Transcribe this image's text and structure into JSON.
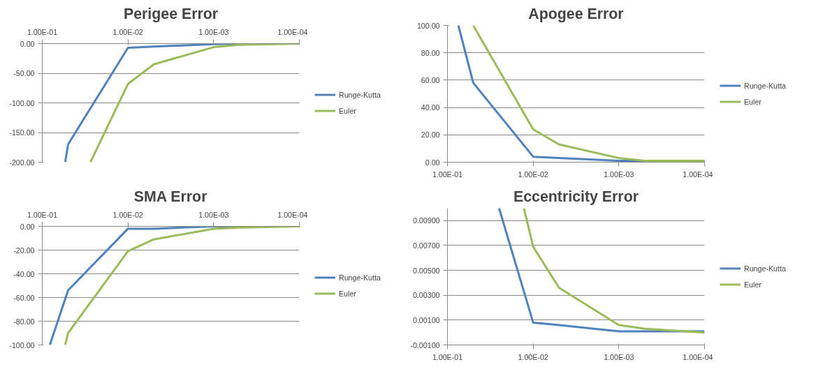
{
  "chart_data": [
    {
      "type": "line",
      "title": "Perigee Error",
      "log": "x",
      "grid": "y",
      "legend": "right",
      "xlim": [
        0.1,
        0.0001
      ],
      "ylim": [
        -200,
        0
      ],
      "xticks": [
        {
          "value": 0.1,
          "label": "1.00E-01"
        },
        {
          "value": 0.01,
          "label": "1.00E-02"
        },
        {
          "value": 0.001,
          "label": "1.00E-03"
        },
        {
          "value": 0.0001,
          "label": "1.00E-04"
        }
      ],
      "yticks": [
        {
          "value": -200,
          "label": "-200.00"
        },
        {
          "value": -150,
          "label": "-150.00"
        },
        {
          "value": -100,
          "label": "-100.00"
        },
        {
          "value": -50,
          "label": "-50.00"
        },
        {
          "value": 0,
          "label": "0.00"
        }
      ],
      "series": [
        {
          "name": "Runge-Kutta",
          "color": "#4f81bd",
          "x": [
            0.054,
            0.05,
            0.01,
            0.005,
            0.001,
            0.0005,
            0.0001
          ],
          "values": [
            -200,
            -170,
            -7,
            -5,
            -1,
            0,
            0
          ]
        },
        {
          "name": "Euler",
          "color": "#9bbb59",
          "x": [
            0.0274,
            0.01,
            0.005,
            0.001,
            0.0005,
            0.0001
          ],
          "values": [
            -200,
            -68,
            -35,
            -6,
            -2,
            0
          ]
        }
      ]
    },
    {
      "type": "line",
      "title": "Apogee Error",
      "log": "x",
      "grid": "y",
      "legend": "right",
      "xlim": [
        0.1,
        0.0001
      ],
      "ylim": [
        0,
        100
      ],
      "xticks": [
        {
          "value": 0.1,
          "label": "1.00E-01"
        },
        {
          "value": 0.01,
          "label": "1.00E-02"
        },
        {
          "value": 0.001,
          "label": "1.00E-03"
        },
        {
          "value": 0.0001,
          "label": "1.00E-04"
        }
      ],
      "yticks": [
        {
          "value": 0,
          "label": "0.00"
        },
        {
          "value": 20,
          "label": "20.00"
        },
        {
          "value": 40,
          "label": "40.00"
        },
        {
          "value": 60,
          "label": "60.00"
        },
        {
          "value": 80,
          "label": "80.00"
        },
        {
          "value": 100,
          "label": "100.00"
        }
      ],
      "series": [
        {
          "name": "Runge-Kutta",
          "color": "#4f81bd",
          "x": [
            0.0746,
            0.05,
            0.01,
            0.005,
            0.001,
            0.0005,
            0.0001
          ],
          "values": [
            100,
            58,
            4,
            3,
            1,
            1,
            1
          ]
        },
        {
          "name": "Euler",
          "color": "#9bbb59",
          "x": [
            0.05,
            0.01,
            0.005,
            0.001,
            0.0005,
            0.0001
          ],
          "values": [
            100,
            24,
            13,
            3,
            1,
            1
          ]
        }
      ]
    },
    {
      "type": "line",
      "title": "SMA Error",
      "log": "x",
      "grid": "y",
      "legend": "right",
      "xlim": [
        0.1,
        0.0001
      ],
      "ylim": [
        -100,
        0
      ],
      "xticks": [
        {
          "value": 0.1,
          "label": "1.00E-01"
        },
        {
          "value": 0.01,
          "label": "1.00E-02"
        },
        {
          "value": 0.001,
          "label": "1.00E-03"
        },
        {
          "value": 0.0001,
          "label": "1.00E-04"
        }
      ],
      "yticks": [
        {
          "value": -100,
          "label": "-100.00"
        },
        {
          "value": -80,
          "label": "-80.00"
        },
        {
          "value": -60,
          "label": "-60.00"
        },
        {
          "value": -40,
          "label": "-40.00"
        },
        {
          "value": -20,
          "label": "-20.00"
        },
        {
          "value": 0,
          "label": "0.00"
        }
      ],
      "series": [
        {
          "name": "Runge-Kutta",
          "color": "#4f81bd",
          "x": [
            0.0816,
            0.05,
            0.01,
            0.005,
            0.001,
            0.0005,
            0.0001
          ],
          "values": [
            -100,
            -54,
            -2,
            -2,
            0,
            0,
            0
          ]
        },
        {
          "name": "Euler",
          "color": "#9bbb59",
          "x": [
            0.054,
            0.05,
            0.01,
            0.005,
            0.001,
            0.0005,
            0.0001
          ],
          "values": [
            -100,
            -90,
            -21,
            -11,
            -2,
            -1,
            0
          ]
        }
      ]
    },
    {
      "type": "line",
      "title": "Eccentricity Error",
      "log": "x",
      "grid": "y",
      "legend": "right",
      "xlim": [
        0.1,
        0.0001
      ],
      "ylim": [
        -0.001,
        0.01
      ],
      "xticks": [
        {
          "value": 0.1,
          "label": "1.00E-01"
        },
        {
          "value": 0.01,
          "label": "1.00E-02"
        },
        {
          "value": 0.001,
          "label": "1.00E-03"
        },
        {
          "value": 0.0001,
          "label": "1.00E-04"
        }
      ],
      "yticks": [
        {
          "value": -0.001,
          "label": "-0.00100"
        },
        {
          "value": 0.001,
          "label": "0.00100"
        },
        {
          "value": 0.003,
          "label": "0.00300"
        },
        {
          "value": 0.005,
          "label": "0.00500"
        },
        {
          "value": 0.007,
          "label": "0.00700"
        },
        {
          "value": 0.009,
          "label": "0.00900"
        }
      ],
      "series": [
        {
          "name": "Runge-Kutta",
          "color": "#4f81bd",
          "x": [
            0.025,
            0.01,
            0.005,
            0.001,
            0.0005,
            0.0001
          ],
          "values": [
            0.01,
            0.0008,
            0.0006,
            0.0001,
            0.0001,
            0.0001
          ]
        },
        {
          "name": "Euler",
          "color": "#9bbb59",
          "x": [
            0.0128,
            0.01,
            0.005,
            0.001,
            0.0005,
            0.0001
          ],
          "values": [
            0.01,
            0.0069,
            0.0036,
            0.0006,
            0.0003,
            0.0
          ]
        }
      ]
    }
  ]
}
